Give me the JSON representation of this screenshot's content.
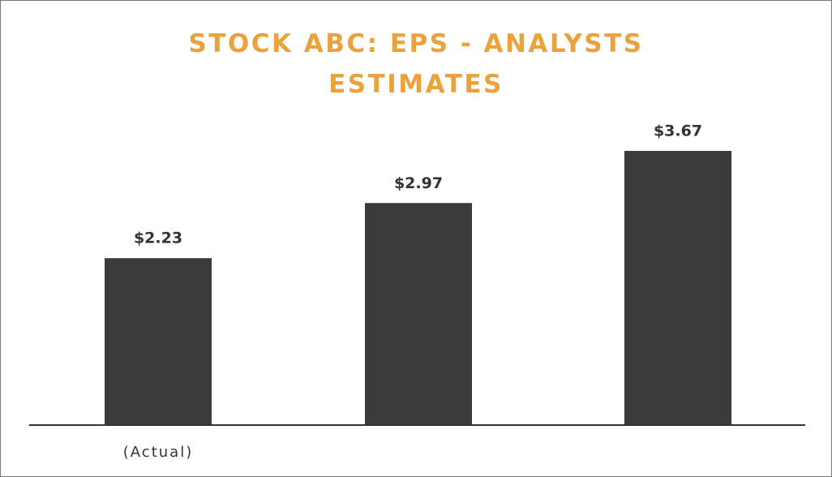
{
  "chart_data": {
    "type": "bar",
    "title": "STOCK ABC:  EPS - ANALYSTS ESTIMATES",
    "categories": [
      "(Actual)",
      null,
      null
    ],
    "values": [
      2.23,
      2.97,
      3.67
    ],
    "value_labels": [
      "$2.23",
      "$2.97",
      "$3.67"
    ],
    "color": "#3b3b3b"
  }
}
